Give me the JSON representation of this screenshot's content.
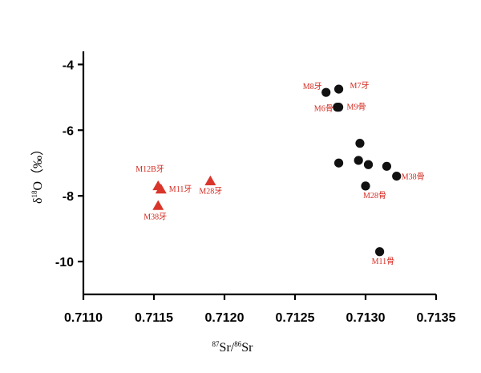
{
  "chart_data": {
    "type": "scatter",
    "x_ticks": [
      "0.7110",
      "0.7115",
      "0.7120",
      "0.7125",
      "0.7130",
      "0.7135"
    ],
    "y_ticks": [
      "-4",
      "-6",
      "-8",
      "-10"
    ],
    "xlim": [
      0.711,
      0.7135
    ],
    "ylim": [
      -11.0,
      -3.6
    ],
    "xlabel": {
      "pre_sup": "87",
      "a": "Sr/",
      "mid_sup": "86",
      "b": "Sr"
    },
    "ylabel": {
      "a": "δ",
      "sup": "18",
      "b": "O（‰）"
    },
    "series": [
      {
        "marker": "triangle",
        "color": "#d9352b",
        "points": [
          {
            "x": 0.71153,
            "y": -7.7,
            "label": "M12B牙"
          },
          {
            "x": 0.71155,
            "y": -7.8,
            "label": "M11牙"
          },
          {
            "x": 0.71153,
            "y": -8.3,
            "label": "M38牙"
          },
          {
            "x": 0.7119,
            "y": -7.55,
            "label": "M28牙"
          }
        ]
      },
      {
        "marker": "circle",
        "color": "#111111",
        "points": [
          {
            "x": 0.71272,
            "y": -4.85,
            "label": "M8牙"
          },
          {
            "x": 0.71281,
            "y": -4.75,
            "label": "M7牙"
          },
          {
            "x": 0.7128,
            "y": -5.3,
            "label": "M6骨"
          },
          {
            "x": 0.71281,
            "y": -5.3,
            "label": "M9骨"
          },
          {
            "x": 0.71296,
            "y": -6.4,
            "label": ""
          },
          {
            "x": 0.71281,
            "y": -7.0,
            "label": ""
          },
          {
            "x": 0.71295,
            "y": -6.92,
            "label": ""
          },
          {
            "x": 0.71302,
            "y": -7.05,
            "label": ""
          },
          {
            "x": 0.71315,
            "y": -7.1,
            "label": ""
          },
          {
            "x": 0.71322,
            "y": -7.4,
            "label": "M38骨"
          },
          {
            "x": 0.713,
            "y": -7.7,
            "label": "M28骨"
          },
          {
            "x": 0.7131,
            "y": -9.7,
            "label": "M11骨"
          }
        ]
      }
    ]
  }
}
